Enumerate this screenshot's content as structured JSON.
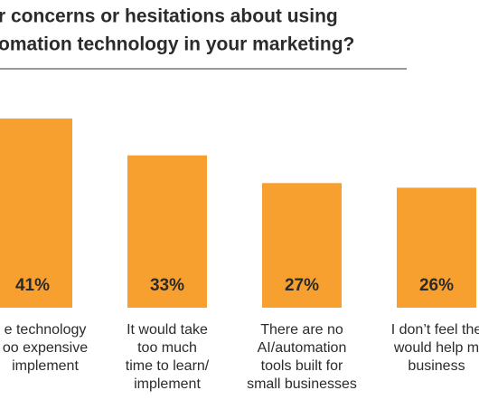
{
  "chart_data": {
    "type": "bar",
    "title": [
      "r concerns or hesitations about using",
      "omation technology in your marketing?"
    ],
    "categories": [
      [
        "e technology",
        "oo expensive",
        " implement"
      ],
      [
        "It would take",
        "too much",
        "time to learn/",
        "implement"
      ],
      [
        "There are no",
        "AI/automation",
        "tools built for",
        "small businesses"
      ],
      [
        "I don’t feel the",
        "would help m",
        "business"
      ]
    ],
    "values": [
      41,
      33,
      27,
      26
    ],
    "value_labels": [
      "41%",
      "33%",
      "27%",
      "26%"
    ],
    "color": "#f7a030"
  }
}
